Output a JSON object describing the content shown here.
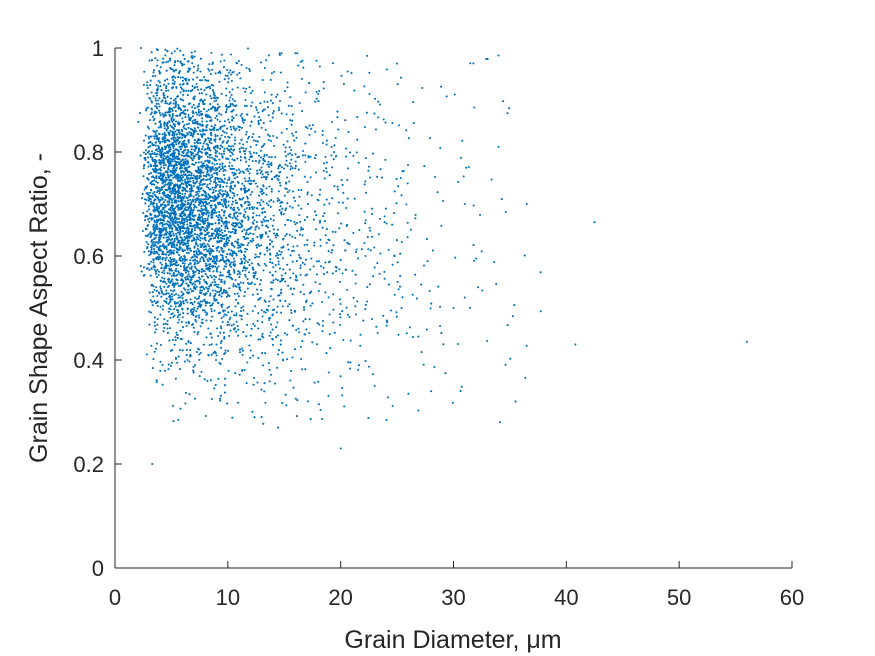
{
  "chart_data": {
    "type": "scatter",
    "xlabel": "Grain Diameter, μm",
    "ylabel": "Grain Shape Aspect Ratio, -",
    "xlim": [
      0,
      60
    ],
    "ylim": [
      0,
      1
    ],
    "xticks": [
      0,
      10,
      20,
      30,
      40,
      50,
      60
    ],
    "yticks": [
      0,
      0.2,
      0.4,
      0.6,
      0.8,
      1
    ],
    "xtick_labels": [
      "0",
      "10",
      "20",
      "30",
      "40",
      "50",
      "60"
    ],
    "ytick_labels": [
      "0",
      "0.2",
      "0.4",
      "0.6",
      "0.8",
      "1"
    ],
    "grid": false,
    "marker_color": "#0072BD",
    "approx_point_count": 5000,
    "notable_points": [
      {
        "x": 2.3,
        "y": 1.0
      },
      {
        "x": 3.3,
        "y": 0.2
      },
      {
        "x": 20.0,
        "y": 0.23
      },
      {
        "x": 16.0,
        "y": 0.99
      },
      {
        "x": 25.0,
        "y": 0.97
      },
      {
        "x": 42.5,
        "y": 0.665
      },
      {
        "x": 40.8,
        "y": 0.43
      },
      {
        "x": 56.0,
        "y": 0.435
      },
      {
        "x": 36.5,
        "y": 0.7
      },
      {
        "x": 34.0,
        "y": 0.81
      },
      {
        "x": 35.5,
        "y": 0.32
      },
      {
        "x": 31.0,
        "y": 0.7
      },
      {
        "x": 30.0,
        "y": 0.5
      }
    ]
  }
}
